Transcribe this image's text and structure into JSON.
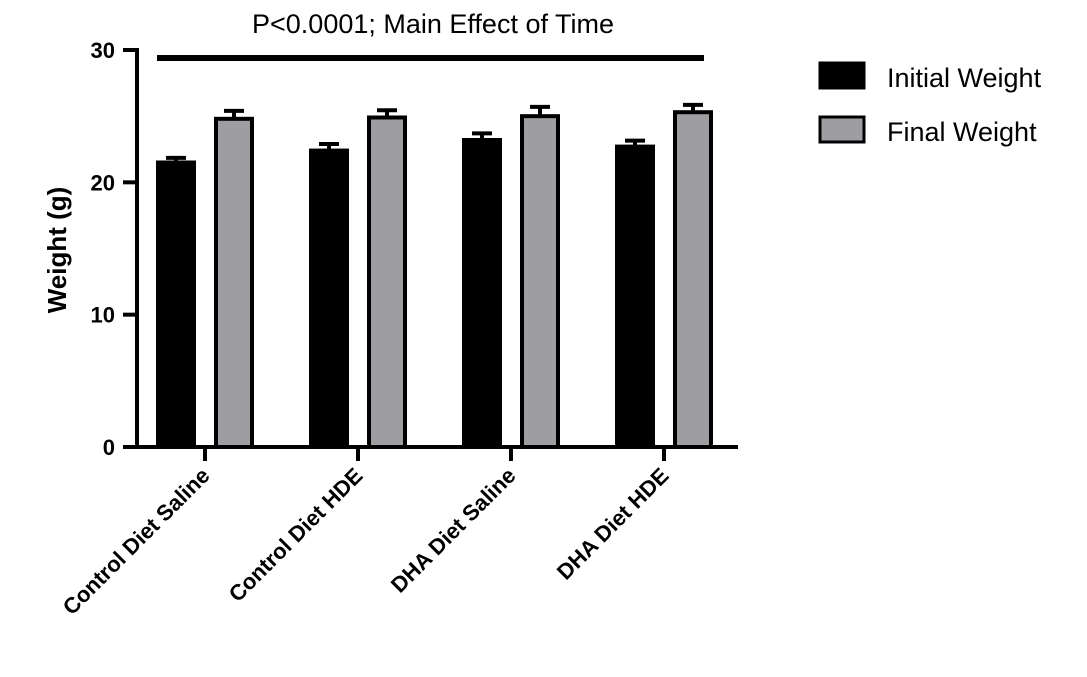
{
  "chart_data": {
    "type": "bar",
    "categories": [
      "Control Diet Saline",
      "Control Diet HDE",
      "DHA Diet Saline",
      "DHA Diet HDE"
    ],
    "series": [
      {
        "name": "Initial Weight",
        "color": "#000000",
        "values": [
          21.5,
          22.4,
          23.2,
          22.7
        ],
        "errors": [
          0.35,
          0.5,
          0.5,
          0.45
        ]
      },
      {
        "name": "Final Weight",
        "color": "#9e9ea2",
        "values": [
          24.8,
          24.9,
          25.0,
          25.3
        ],
        "errors": [
          0.6,
          0.55,
          0.7,
          0.55
        ]
      }
    ],
    "ylabel": "Weight (g)",
    "xlabel": "",
    "ylim": [
      0,
      30
    ],
    "yticks": [
      "0",
      "10",
      "20",
      "30"
    ],
    "annotation": "P<0.0001; Main Effect of Time",
    "legend_position": "top-right",
    "grid": false
  }
}
